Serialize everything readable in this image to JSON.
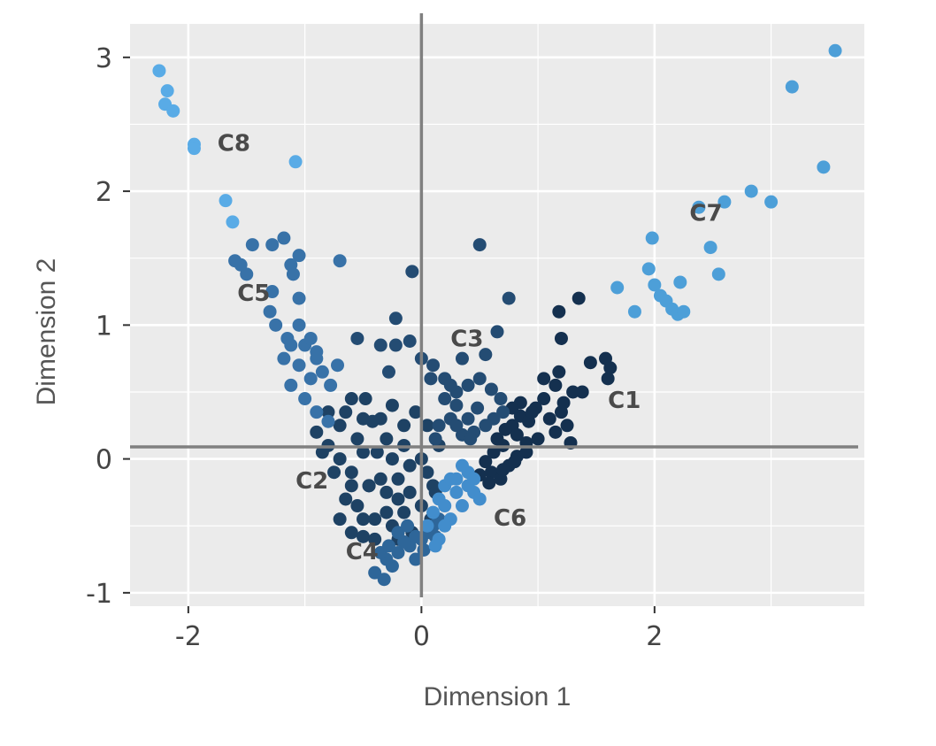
{
  "chart_data": {
    "type": "scatter",
    "title": "",
    "xlabel": "Dimension 1",
    "ylabel": "Dimension 2",
    "xlim": [
      -2.5,
      3.8
    ],
    "ylim": [
      -1.1,
      3.25
    ],
    "x_ticks": [
      {
        "value": -2,
        "label": "-2"
      },
      {
        "value": 0,
        "label": "0"
      },
      {
        "value": 2,
        "label": "2"
      }
    ],
    "y_ticks": [
      {
        "value": -1,
        "label": "-1"
      },
      {
        "value": 0,
        "label": "0"
      },
      {
        "value": 1,
        "label": "1"
      },
      {
        "value": 2,
        "label": "2"
      },
      {
        "value": 3,
        "label": "3"
      }
    ],
    "grid": true,
    "reference_lines": {
      "vertical_x": 0,
      "horizontal_y": 0.09
    },
    "colors": {
      "panel": "#ebebeb",
      "grid": "#ffffff",
      "reference": "#808080"
    },
    "clusters": [
      {
        "label": "C1",
        "label_at": [
          1.6,
          0.38
        ],
        "color": "#14304f",
        "points": [
          [
            0.78,
            0.25
          ],
          [
            0.85,
            0.32
          ],
          [
            0.92,
            0.28
          ],
          [
            0.98,
            0.38
          ],
          [
            1.05,
            0.45
          ],
          [
            1.1,
            0.3
          ],
          [
            1.15,
            0.2
          ],
          [
            1.2,
            0.35
          ],
          [
            0.82,
            0.18
          ],
          [
            0.9,
            0.12
          ],
          [
            0.7,
            0.1
          ],
          [
            0.62,
            0.05
          ],
          [
            0.55,
            -0.02
          ],
          [
            0.6,
            -0.1
          ],
          [
            0.68,
            -0.15
          ],
          [
            0.75,
            -0.05
          ],
          [
            0.82,
            0.02
          ],
          [
            0.9,
            0.05
          ],
          [
            0.5,
            -0.12
          ],
          [
            0.58,
            -0.18
          ],
          [
            0.65,
            0.15
          ],
          [
            0.72,
            0.22
          ],
          [
            1.25,
            0.25
          ],
          [
            1.3,
            0.5
          ],
          [
            1.38,
            0.5
          ],
          [
            1.45,
            0.72
          ],
          [
            1.58,
            0.75
          ],
          [
            1.6,
            0.6
          ],
          [
            1.62,
            0.68
          ],
          [
            1.15,
            0.55
          ],
          [
            1.05,
            0.6
          ],
          [
            1.22,
            0.42
          ],
          [
            1.2,
            0.9
          ],
          [
            1.18,
            0.65
          ],
          [
            1.35,
            1.2
          ],
          [
            1.18,
            1.1
          ],
          [
            0.95,
            0.35
          ],
          [
            1.0,
            0.15
          ],
          [
            0.85,
            0.42
          ],
          [
            0.78,
            0.38
          ],
          [
            0.8,
            -0.02
          ],
          [
            0.7,
            -0.08
          ],
          [
            1.28,
            0.12
          ]
        ]
      },
      {
        "label": "C2",
        "label_at": [
          -1.08,
          -0.22
        ],
        "color": "#1e4264",
        "points": [
          [
            -0.9,
            0.2
          ],
          [
            -0.8,
            0.1
          ],
          [
            -0.7,
            0.0
          ],
          [
            -0.6,
            -0.1
          ],
          [
            -0.5,
            0.05
          ],
          [
            -0.45,
            -0.2
          ],
          [
            -0.35,
            -0.15
          ],
          [
            -0.25,
            0.0
          ],
          [
            -0.15,
            0.1
          ],
          [
            -0.1,
            -0.05
          ],
          [
            0.0,
            0.0
          ],
          [
            0.05,
            -0.1
          ],
          [
            0.1,
            -0.2
          ],
          [
            -0.2,
            -0.3
          ],
          [
            -0.3,
            -0.4
          ],
          [
            -0.4,
            -0.45
          ],
          [
            -0.55,
            -0.35
          ],
          [
            -0.65,
            -0.3
          ],
          [
            -0.7,
            -0.45
          ],
          [
            -0.6,
            -0.55
          ],
          [
            -0.5,
            -0.58
          ],
          [
            -0.45,
            -0.2
          ],
          [
            -0.35,
            0.3
          ],
          [
            -0.25,
            0.4
          ],
          [
            -0.15,
            0.25
          ],
          [
            -0.05,
            0.35
          ],
          [
            0.05,
            0.25
          ],
          [
            0.15,
            0.1
          ],
          [
            -0.8,
            0.35
          ],
          [
            -0.7,
            0.25
          ],
          [
            -0.6,
            0.45
          ],
          [
            -0.5,
            0.3
          ],
          [
            -0.55,
            0.15
          ],
          [
            -0.3,
            0.15
          ],
          [
            -0.2,
            -0.15
          ],
          [
            -0.1,
            -0.25
          ],
          [
            0.0,
            -0.35
          ],
          [
            0.08,
            -0.45
          ],
          [
            -0.08,
            -0.55
          ],
          [
            -0.2,
            -0.6
          ],
          [
            -0.4,
            -0.6
          ],
          [
            -0.3,
            -0.25
          ],
          [
            -0.6,
            -0.2
          ],
          [
            -0.75,
            -0.1
          ],
          [
            -0.85,
            0.05
          ],
          [
            -0.38,
            0.05
          ],
          [
            0.12,
            -0.25
          ],
          [
            -0.15,
            -0.4
          ],
          [
            -0.25,
            -0.5
          ],
          [
            -0.48,
            0.45
          ],
          [
            -0.42,
            0.28
          ],
          [
            -0.65,
            0.35
          ],
          [
            -0.5,
            -0.45
          ]
        ]
      },
      {
        "label": "C3",
        "label_at": [
          0.25,
          0.84
        ],
        "color": "#244c73",
        "points": [
          [
            0.5,
            1.6
          ],
          [
            -0.08,
            1.4
          ],
          [
            0.75,
            1.2
          ],
          [
            -0.22,
            1.05
          ],
          [
            -0.35,
            0.85
          ],
          [
            -0.28,
            0.65
          ],
          [
            -0.55,
            0.9
          ],
          [
            -0.22,
            0.85
          ],
          [
            -0.1,
            0.88
          ],
          [
            0.0,
            0.75
          ],
          [
            0.1,
            0.7
          ],
          [
            0.2,
            0.6
          ],
          [
            0.3,
            0.5
          ],
          [
            0.4,
            0.55
          ],
          [
            0.5,
            0.6
          ],
          [
            0.6,
            0.52
          ],
          [
            0.35,
            0.75
          ],
          [
            0.55,
            0.78
          ],
          [
            0.65,
            0.95
          ],
          [
            0.68,
            0.45
          ],
          [
            0.7,
            0.35
          ],
          [
            0.62,
            0.3
          ],
          [
            0.55,
            0.25
          ],
          [
            0.45,
            0.2
          ],
          [
            0.4,
            0.3
          ],
          [
            0.3,
            0.4
          ],
          [
            0.2,
            0.45
          ],
          [
            0.25,
            0.55
          ],
          [
            0.15,
            0.25
          ],
          [
            0.25,
            0.3
          ],
          [
            0.35,
            0.18
          ],
          [
            0.48,
            0.38
          ],
          [
            0.08,
            0.6
          ],
          [
            0.3,
            0.25
          ],
          [
            0.42,
            0.15
          ],
          [
            0.12,
            0.15
          ]
        ]
      },
      {
        "label": "C4",
        "label_at": [
          -0.65,
          -0.75
        ],
        "color": "#2e6699",
        "points": [
          [
            -0.4,
            -0.85
          ],
          [
            -0.32,
            -0.9
          ],
          [
            -0.25,
            -0.8
          ],
          [
            -0.2,
            -0.7
          ],
          [
            -0.1,
            -0.65
          ],
          [
            0.0,
            -0.6
          ],
          [
            0.05,
            -0.55
          ],
          [
            0.1,
            -0.5
          ],
          [
            0.15,
            -0.45
          ],
          [
            -0.05,
            -0.75
          ],
          [
            -0.15,
            -0.62
          ],
          [
            -0.3,
            -0.75
          ],
          [
            -0.35,
            -0.7
          ],
          [
            -0.2,
            -0.55
          ],
          [
            -0.05,
            -0.58
          ],
          [
            0.02,
            -0.68
          ],
          [
            0.12,
            -0.58
          ],
          [
            -0.12,
            -0.5
          ],
          [
            -0.28,
            -0.65
          ]
        ]
      },
      {
        "label": "C5",
        "label_at": [
          -1.58,
          1.18
        ],
        "color": "#3872a8",
        "points": [
          [
            -1.55,
            1.45
          ],
          [
            -1.6,
            1.48
          ],
          [
            -1.45,
            1.6
          ],
          [
            -1.28,
            1.6
          ],
          [
            -1.18,
            1.65
          ],
          [
            -1.05,
            1.52
          ],
          [
            -1.12,
            1.45
          ],
          [
            -1.5,
            1.38
          ],
          [
            -1.28,
            1.25
          ],
          [
            -1.05,
            1.2
          ],
          [
            -1.1,
            1.38
          ],
          [
            -1.3,
            1.1
          ],
          [
            -1.25,
            1.0
          ],
          [
            -1.15,
            0.9
          ],
          [
            -1.05,
            1.0
          ],
          [
            -1.0,
            0.85
          ],
          [
            -0.9,
            0.8
          ],
          [
            -0.85,
            0.65
          ],
          [
            -0.78,
            0.55
          ],
          [
            -0.72,
            0.7
          ],
          [
            -0.95,
            0.6
          ],
          [
            -1.12,
            0.55
          ],
          [
            -1.0,
            0.45
          ],
          [
            -0.9,
            0.35
          ],
          [
            -0.8,
            0.28
          ],
          [
            -1.05,
            0.7
          ],
          [
            -1.18,
            0.75
          ],
          [
            -1.12,
            0.85
          ],
          [
            -0.95,
            0.9
          ],
          [
            -0.9,
            0.75
          ],
          [
            -0.7,
            1.48
          ]
        ]
      },
      {
        "label": "C6",
        "label_at": [
          0.62,
          -0.5
        ],
        "color": "#428dcc",
        "points": [
          [
            0.1,
            -0.4
          ],
          [
            0.15,
            -0.3
          ],
          [
            0.2,
            -0.2
          ],
          [
            0.3,
            -0.15
          ],
          [
            0.4,
            -0.1
          ],
          [
            0.45,
            -0.25
          ],
          [
            0.35,
            -0.35
          ],
          [
            0.25,
            -0.45
          ],
          [
            0.2,
            -0.5
          ],
          [
            0.15,
            -0.6
          ],
          [
            0.3,
            -0.25
          ],
          [
            0.4,
            -0.2
          ],
          [
            0.5,
            -0.3
          ],
          [
            0.35,
            -0.05
          ],
          [
            0.25,
            -0.15
          ],
          [
            0.05,
            -0.5
          ],
          [
            0.12,
            -0.65
          ],
          [
            0.45,
            -0.15
          ],
          [
            0.2,
            -0.35
          ]
        ]
      },
      {
        "label": "C7",
        "label_at": [
          2.3,
          1.78
        ],
        "color": "#4d9fd8",
        "points": [
          [
            3.55,
            3.05
          ],
          [
            3.18,
            2.78
          ],
          [
            3.45,
            2.18
          ],
          [
            2.83,
            2.0
          ],
          [
            3.0,
            1.92
          ],
          [
            2.6,
            1.92
          ],
          [
            2.38,
            1.88
          ],
          [
            2.48,
            1.58
          ],
          [
            2.55,
            1.38
          ],
          [
            1.98,
            1.65
          ],
          [
            1.95,
            1.42
          ],
          [
            2.0,
            1.3
          ],
          [
            2.05,
            1.22
          ],
          [
            2.1,
            1.18
          ],
          [
            2.15,
            1.12
          ],
          [
            2.2,
            1.08
          ],
          [
            2.22,
            1.32
          ],
          [
            1.68,
            1.28
          ],
          [
            1.83,
            1.1
          ],
          [
            2.25,
            1.1
          ]
        ]
      },
      {
        "label": "C8",
        "label_at": [
          -1.75,
          2.3
        ],
        "color": "#59abe6",
        "points": [
          [
            -2.25,
            2.9
          ],
          [
            -2.18,
            2.75
          ],
          [
            -2.2,
            2.65
          ],
          [
            -2.13,
            2.6
          ],
          [
            -1.95,
            2.35
          ],
          [
            -1.95,
            2.32
          ],
          [
            -1.08,
            2.22
          ],
          [
            -1.68,
            1.93
          ],
          [
            -1.62,
            1.77
          ]
        ]
      }
    ]
  }
}
